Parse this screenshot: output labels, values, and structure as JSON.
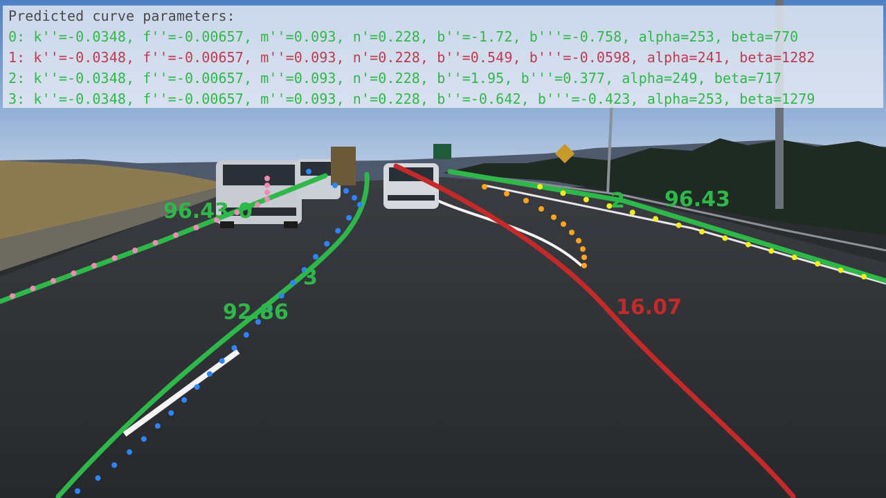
{
  "panel": {
    "title": "Predicted curve parameters:",
    "lines": [
      {
        "text": "0: k''=-0.0348, f''=-0.00657, m''=0.093, n'=0.228, b''=-1.72, b'''=-0.758, alpha=253, beta=770",
        "color": "#2fb84a"
      },
      {
        "text": "1: k''=-0.0348, f''=-0.00657, m''=0.093, n'=0.228, b''=0.549, b'''=-0.0598, alpha=241, beta=1282",
        "color": "#c0394f"
      },
      {
        "text": "2: k''=-0.0348, f''=-0.00657, m''=0.093, n'=0.228, b''=1.95, b'''=0.377, alpha=249, beta=717",
        "color": "#2fb84a"
      },
      {
        "text": "3: k''=-0.0348, f''=-0.00657, m''=0.093, n'=0.228, b''=-0.642, b'''=-0.423, alpha=253, beta=1279",
        "color": "#2fb84a"
      }
    ]
  },
  "lanes": {
    "lane0": {
      "id": "0",
      "score": "96.43",
      "color": "#2fb84a"
    },
    "lane1": {
      "id": "",
      "score": "16.07",
      "color": "#c42a2a"
    },
    "lane2": {
      "id": "2",
      "score": "96.43",
      "color": "#2fb84a"
    },
    "lane3": {
      "id": "3",
      "score": "92.86",
      "color": "#2fb84a"
    }
  },
  "colors": {
    "pink_points": "#f08cb4",
    "blue_points": "#2e86ff",
    "orange_points": "#ffa51e",
    "yellow_points": "#f2ee1e",
    "sky": "#7ea5d6",
    "road": "#2c2e33"
  }
}
